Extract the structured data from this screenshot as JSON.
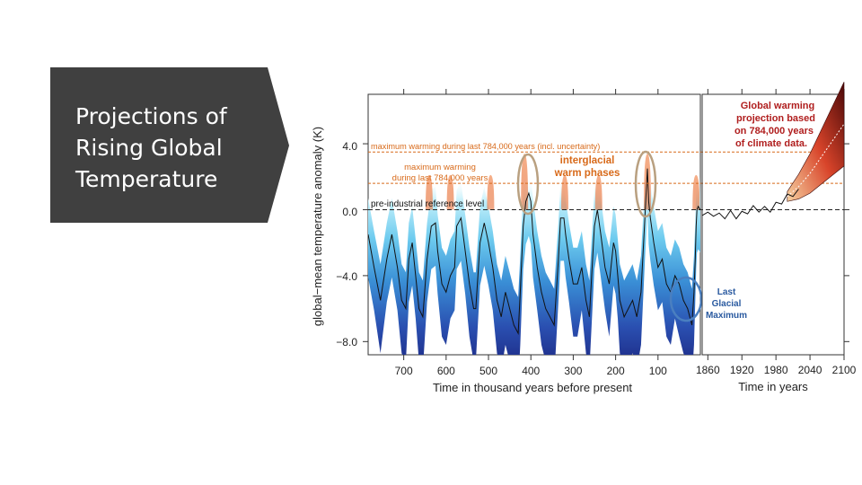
{
  "slide": {
    "title_lines": [
      "Projections of",
      "Rising Global",
      "Temperature"
    ]
  },
  "colors": {
    "title_box": "#404040",
    "orange": "#e07020",
    "annotation_orange": "#d86a1a",
    "label_red": "#b01e1e",
    "glacial_blue": "#4a7fc0",
    "deep_blue": "#1a1a7a",
    "light_blue": "#9fe0f5"
  },
  "chart_data": {
    "type": "line",
    "ylabel": "global−mean temperature anomaly (K)",
    "yticks": [
      {
        "value": 4.0,
        "label": "4.0"
      },
      {
        "value": 0.0,
        "label": "0.0"
      },
      {
        "value": -4.0,
        "label": "−4.0"
      },
      {
        "value": -8.0,
        "label": "−8.0"
      }
    ],
    "ylim": [
      -8.8,
      7.0
    ],
    "panels": [
      {
        "name": "paleo",
        "xlabel": "Time in thousand years before present",
        "xlim": [
          784,
          0
        ],
        "xticks": [
          700,
          600,
          500,
          400,
          300,
          200,
          100
        ],
        "series": [
          {
            "name": "reconstructed temperature anomaly (K)",
            "x": [
              784,
              770,
              755,
              740,
              728,
              715,
              705,
              695,
              688,
              680,
              672,
              664,
              655,
              645,
              635,
              625,
              620,
              610,
              600,
              590,
              580,
              575,
              565,
              555,
              545,
              535,
              530,
              520,
              510,
              500,
              490,
              480,
              470,
              460,
              450,
              440,
              430,
              425,
              418,
              412,
              405,
              400,
              395,
              385,
              375,
              365,
              355,
              345,
              335,
              330,
              322,
              318,
              310,
              300,
              290,
              280,
              270,
              262,
              250,
              243,
              235,
              225,
              215,
              205,
              200,
              195,
              190,
              180,
              170,
              160,
              150,
              140,
              131,
              128,
              125,
              122,
              118,
              110,
              100,
              90,
              80,
              70,
              60,
              50,
              40,
              30,
              25,
              20,
              15,
              12,
              10,
              8,
              5,
              0
            ],
            "values": [
              -1.5,
              -3.5,
              -5.5,
              -3.0,
              -1.5,
              -3.5,
              -5.5,
              -6.0,
              -3.0,
              -2.0,
              -4.0,
              -6.0,
              -6.5,
              -3.0,
              -1.0,
              -0.8,
              -2.5,
              -4.5,
              -5.0,
              -4.0,
              -3.5,
              -1.0,
              -0.5,
              -2.5,
              -4.5,
              -6.0,
              -6.0,
              -2.0,
              -0.8,
              -2.0,
              -3.5,
              -5.5,
              -6.5,
              -5.0,
              -6.0,
              -7.0,
              -7.5,
              -5.0,
              -1.0,
              0.5,
              1.0,
              0.5,
              -1.5,
              -3.5,
              -5.0,
              -6.0,
              -6.5,
              -7.0,
              -3.0,
              -0.5,
              -0.5,
              -1.5,
              -3.0,
              -4.5,
              -4.5,
              -3.5,
              -5.5,
              -6.5,
              -1.0,
              0.0,
              -1.5,
              -3.5,
              -4.5,
              -2.0,
              -2.5,
              -4.0,
              -5.5,
              -6.5,
              -6.0,
              -5.5,
              -6.5,
              -5.0,
              -0.5,
              1.0,
              2.5,
              0.5,
              -0.5,
              -2.0,
              -3.5,
              -3.0,
              -4.5,
              -5.0,
              -4.0,
              -4.5,
              -5.5,
              -6.0,
              -6.5,
              -7.0,
              -5.0,
              -3.0,
              -1.0,
              0.0,
              0.2,
              0.0
            ]
          }
        ],
        "interglacial_peaks_x": [
          640,
          590,
          495,
          415,
          320,
          240,
          125,
          10
        ],
        "annotations": {
          "max_warming_line": "maximum warming during last 784,000 years (incl. uncertainty)",
          "max_warming_label_line1": "maximum warming",
          "max_warming_label_line2": "during last 784,000 years",
          "interglacial_line1": "interglacial",
          "interglacial_line2": "warm phases",
          "preindustrial": "pre-industrial reference level",
          "lgm_line1": "Last",
          "lgm_line2": "Glacial",
          "lgm_line3": "Maximum"
        },
        "reference_levels": {
          "max_warming_upper": 3.5,
          "max_warming_lower": 1.6,
          "preindustrial": 0.0
        }
      },
      {
        "name": "modern",
        "xlabel": "Time in years",
        "xlim": [
          1850,
          2100
        ],
        "xticks": [
          1860,
          1920,
          1980,
          2040,
          2100
        ],
        "series": [
          {
            "name": "observed",
            "x": [
              1850,
              1860,
              1870,
              1880,
              1890,
              1900,
              1910,
              1920,
              1930,
              1940,
              1950,
              1960,
              1970,
              1980,
              1990,
              2000,
              2010,
              2020
            ],
            "values": [
              -0.2,
              -0.3,
              -0.25,
              -0.35,
              -0.4,
              -0.2,
              -0.4,
              -0.25,
              -0.1,
              0.1,
              0.0,
              0.05,
              0.0,
              0.3,
              0.5,
              0.8,
              0.95,
              1.1
            ]
          },
          {
            "name": "projection",
            "x": [
              2000,
              2020,
              2040,
              2060,
              2080,
              2100
            ],
            "values": [
              0.8,
              1.4,
              2.2,
              3.2,
              4.2,
              5.2
            ]
          }
        ],
        "projection_label_line1": "Global warming",
        "projection_label_line2": "projection based",
        "projection_label_line3": "on 784,000 years",
        "projection_label_line4": "of climate data."
      }
    ]
  }
}
